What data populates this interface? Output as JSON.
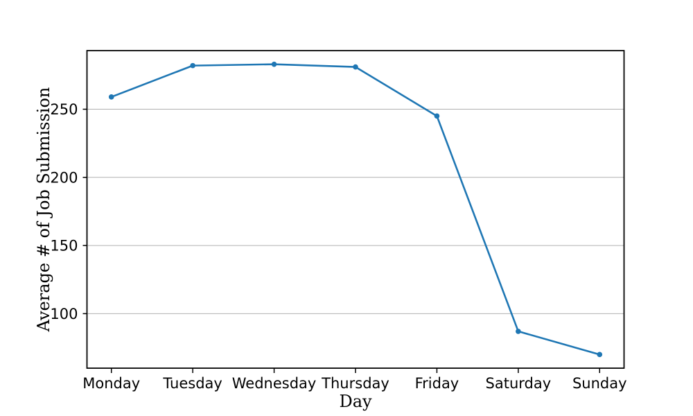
{
  "figure": {
    "background": "#ffffff"
  },
  "chart_data": {
    "type": "line",
    "title": "",
    "xlabel": "Day",
    "ylabel": "Average # of Job Submission",
    "categories": [
      "Monday",
      "Tuesday",
      "Wednesday",
      "Thursday",
      "Friday",
      "Saturday",
      "Sunday"
    ],
    "values": [
      259,
      282,
      283,
      281,
      245,
      87,
      70
    ],
    "yticks": [
      100,
      150,
      200,
      250
    ],
    "ylim": [
      60,
      293
    ],
    "x_margin": 0.3,
    "grid": "horizontal-only",
    "legend": "none",
    "colors": {
      "line": "#1f77b4",
      "marker": "#1f77b4",
      "grid": "#b0b0b0",
      "spine": "#000000",
      "text": "#000000"
    }
  }
}
